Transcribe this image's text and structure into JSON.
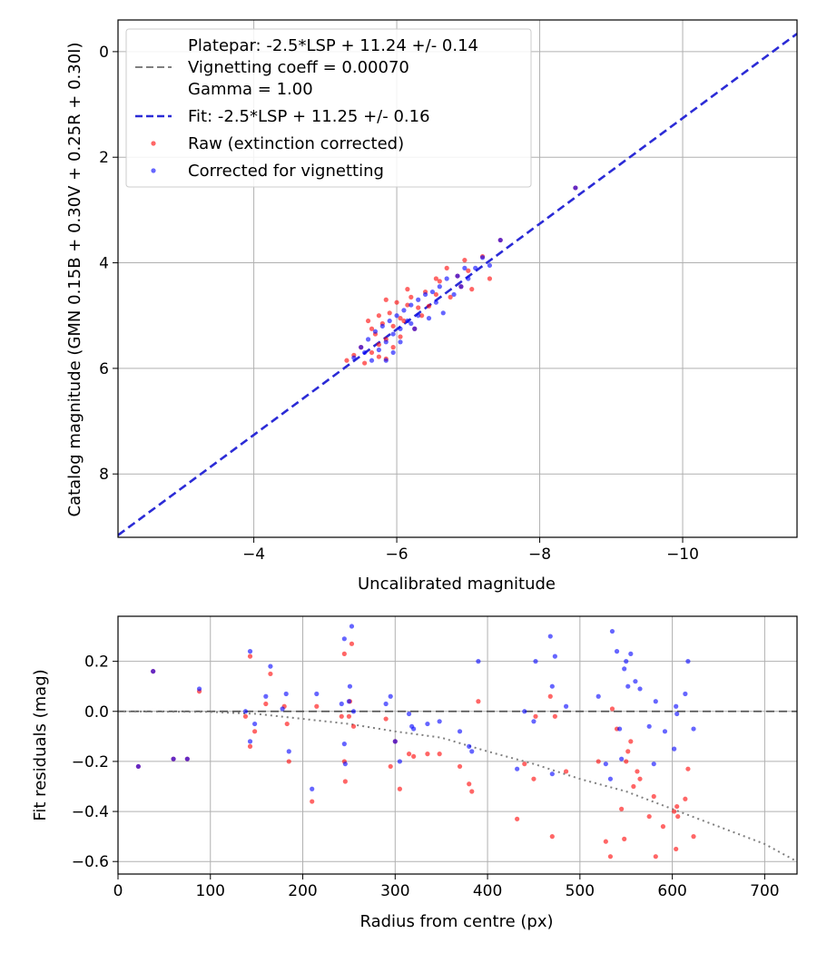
{
  "colors": {
    "raw": "#ff0000",
    "corrected": "#0000ff",
    "fit": "#2b2bd6",
    "vignetting": "#808080",
    "grid": "#b0b0b0"
  },
  "chart_data": [
    {
      "type": "scatter",
      "title": "",
      "xlabel": "Uncalibrated magnitude",
      "ylabel": "Catalog magnitude (GMN 0.15B + 0.30V + 0.25R + 0.30I)",
      "xlim": [
        -2.1,
        -11.6
      ],
      "ylim": [
        9.2,
        -0.6
      ],
      "y_inverted": true,
      "x_inverted": true,
      "grid": true,
      "x_ticks": [
        -4,
        -6,
        -8,
        -10
      ],
      "x_tick_labels": [
        "−4",
        "−6",
        "−8",
        "−10"
      ],
      "y_ticks": [
        0,
        2,
        4,
        6,
        8
      ],
      "y_tick_labels": [
        "0",
        "2",
        "4",
        "6",
        "8"
      ],
      "legend_position": "top-left",
      "legend": {
        "platepar": "Platepar: -2.5*LSP + 11.24 +/- 0.14",
        "vignetting": "Vignetting coeff = 0.00070",
        "gamma": "Gamma = 1.00",
        "fit": "Fit: -2.5*LSP + 11.25 +/- 0.16",
        "raw": "Raw (extinction corrected)",
        "corrected": "Corrected for vignetting"
      },
      "lines": [
        {
          "name": "Platepar",
          "style": "solid",
          "points": [
            [
              -2.1,
              9.16
            ],
            [
              -11.6,
              -0.34
            ]
          ]
        },
        {
          "name": "Fit",
          "style": "dashed",
          "points": [
            [
              -2.1,
              9.16
            ],
            [
              -11.6,
              -0.34
            ]
          ]
        }
      ],
      "series": [
        {
          "name": "Raw (extinction corrected)",
          "points": [
            [
              -8.5,
              2.58
            ],
            [
              -7.45,
              3.57
            ],
            [
              -7.2,
              3.88
            ],
            [
              -6.95,
              3.95
            ],
            [
              -6.7,
              4.1
            ],
            [
              -7.0,
              4.15
            ],
            [
              -6.85,
              4.25
            ],
            [
              -6.6,
              4.35
            ],
            [
              -6.9,
              4.45
            ],
            [
              -7.05,
              4.5
            ],
            [
              -6.4,
              4.55
            ],
            [
              -6.55,
              4.6
            ],
            [
              -6.2,
              4.65
            ],
            [
              -6.75,
              4.65
            ],
            [
              -5.85,
              4.7
            ],
            [
              -6.0,
              4.75
            ],
            [
              -6.15,
              4.8
            ],
            [
              -6.3,
              4.85
            ],
            [
              -6.45,
              4.82
            ],
            [
              -5.9,
              4.95
            ],
            [
              -5.75,
              5.0
            ],
            [
              -6.05,
              5.05
            ],
            [
              -6.35,
              5.0
            ],
            [
              -5.6,
              5.1
            ],
            [
              -5.8,
              5.15
            ],
            [
              -6.1,
              5.1
            ],
            [
              -5.65,
              5.25
            ],
            [
              -5.95,
              5.2
            ],
            [
              -6.25,
              5.25
            ],
            [
              -5.7,
              5.35
            ],
            [
              -5.85,
              5.45
            ],
            [
              -6.05,
              5.4
            ],
            [
              -5.5,
              5.6
            ],
            [
              -5.75,
              5.55
            ],
            [
              -5.95,
              5.6
            ],
            [
              -5.4,
              5.75
            ],
            [
              -5.65,
              5.7
            ],
            [
              -5.85,
              5.82
            ],
            [
              -5.3,
              5.85
            ],
            [
              -5.55,
              5.9
            ],
            [
              -5.75,
              5.78
            ],
            [
              -6.15,
              4.5
            ],
            [
              -6.55,
              4.3
            ],
            [
              -7.3,
              4.3
            ]
          ]
        },
        {
          "name": "Corrected for vignetting",
          "points": [
            [
              -8.5,
              2.58
            ],
            [
              -7.45,
              3.57
            ],
            [
              -7.2,
              3.9
            ],
            [
              -7.3,
              4.05
            ],
            [
              -7.1,
              4.1
            ],
            [
              -6.95,
              4.1
            ],
            [
              -6.85,
              4.25
            ],
            [
              -6.7,
              4.3
            ],
            [
              -6.6,
              4.45
            ],
            [
              -6.5,
              4.55
            ],
            [
              -6.4,
              4.6
            ],
            [
              -6.8,
              4.6
            ],
            [
              -6.3,
              4.7
            ],
            [
              -6.2,
              4.8
            ],
            [
              -6.55,
              4.75
            ],
            [
              -6.1,
              4.9
            ],
            [
              -6.0,
              5.0
            ],
            [
              -6.3,
              5.0
            ],
            [
              -5.9,
              5.1
            ],
            [
              -6.15,
              5.1
            ],
            [
              -5.8,
              5.2
            ],
            [
              -6.05,
              5.25
            ],
            [
              -5.7,
              5.3
            ],
            [
              -5.95,
              5.35
            ],
            [
              -6.25,
              5.25
            ],
            [
              -5.6,
              5.45
            ],
            [
              -5.85,
              5.5
            ],
            [
              -6.05,
              5.5
            ],
            [
              -5.5,
              5.6
            ],
            [
              -5.75,
              5.65
            ],
            [
              -5.95,
              5.7
            ],
            [
              -5.4,
              5.8
            ],
            [
              -5.65,
              5.85
            ],
            [
              -5.85,
              5.85
            ],
            [
              -5.55,
              5.7
            ],
            [
              -6.45,
              5.05
            ],
            [
              -6.9,
              4.45
            ],
            [
              -7.0,
              4.3
            ],
            [
              -6.65,
              4.95
            ],
            [
              -6.2,
              5.15
            ]
          ]
        }
      ]
    },
    {
      "type": "scatter",
      "title": "",
      "xlabel": "Radius from centre (px)",
      "ylabel": "Fit residuals (mag)",
      "xlim": [
        0,
        735
      ],
      "ylim": [
        -0.65,
        0.38
      ],
      "grid": true,
      "x_ticks": [
        0,
        100,
        200,
        300,
        400,
        500,
        600,
        700
      ],
      "x_tick_labels": [
        "0",
        "100",
        "200",
        "300",
        "400",
        "500",
        "600",
        "700"
      ],
      "y_ticks": [
        0.2,
        0.0,
        -0.2,
        -0.4,
        -0.6
      ],
      "y_tick_labels": [
        "0.2",
        "0.0",
        "−0.2",
        "−0.4",
        "−0.6"
      ],
      "lines": [
        {
          "name": "Zero",
          "style": "dashed",
          "points": [
            [
              0,
              0
            ],
            [
              735,
              0
            ]
          ]
        },
        {
          "name": "Vignetting model",
          "style": "dotted",
          "coeff": 0.0007,
          "points": [
            [
              0,
              0
            ],
            [
              100,
              -0.002
            ],
            [
              150,
              -0.01
            ],
            [
              200,
              -0.03
            ],
            [
              250,
              -0.05
            ],
            [
              300,
              -0.08
            ],
            [
              350,
              -0.105
            ],
            [
              400,
              -0.16
            ],
            [
              450,
              -0.21
            ],
            [
              500,
              -0.27
            ],
            [
              550,
              -0.32
            ],
            [
              600,
              -0.39
            ],
            [
              650,
              -0.46
            ],
            [
              700,
              -0.53
            ],
            [
              735,
              -0.6
            ]
          ]
        }
      ],
      "series": [
        {
          "name": "Raw (extinction corrected)",
          "points": [
            [
              22,
              -0.22
            ],
            [
              38,
              0.16
            ],
            [
              60,
              -0.19
            ],
            [
              75,
              -0.19
            ],
            [
              88,
              0.08
            ],
            [
              138,
              -0.02
            ],
            [
              143,
              0.22
            ],
            [
              143,
              -0.14
            ],
            [
              148,
              -0.08
            ],
            [
              160,
              0.03
            ],
            [
              165,
              0.15
            ],
            [
              180,
              0.02
            ],
            [
              183,
              -0.05
            ],
            [
              185,
              -0.2
            ],
            [
              210,
              -0.36
            ],
            [
              215,
              0.02
            ],
            [
              242,
              -0.02
            ],
            [
              245,
              0.23
            ],
            [
              245,
              -0.2
            ],
            [
              246,
              -0.28
            ],
            [
              250,
              -0.02
            ],
            [
              251,
              0.04
            ],
            [
              253,
              0.27
            ],
            [
              255,
              -0.06
            ],
            [
              290,
              -0.03
            ],
            [
              295,
              -0.22
            ],
            [
              300,
              -0.12
            ],
            [
              305,
              -0.31
            ],
            [
              315,
              -0.17
            ],
            [
              320,
              -0.18
            ],
            [
              335,
              -0.17
            ],
            [
              348,
              -0.17
            ],
            [
              370,
              -0.22
            ],
            [
              380,
              -0.29
            ],
            [
              383,
              -0.32
            ],
            [
              390,
              0.04
            ],
            [
              432,
              -0.43
            ],
            [
              440,
              -0.21
            ],
            [
              450,
              -0.27
            ],
            [
              452,
              -0.02
            ],
            [
              468,
              0.06
            ],
            [
              470,
              -0.5
            ],
            [
              473,
              -0.02
            ],
            [
              485,
              -0.24
            ],
            [
              520,
              -0.2
            ],
            [
              528,
              -0.52
            ],
            [
              533,
              -0.58
            ],
            [
              535,
              0.01
            ],
            [
              540,
              -0.07
            ],
            [
              545,
              -0.39
            ],
            [
              548,
              -0.51
            ],
            [
              550,
              -0.2
            ],
            [
              552,
              -0.16
            ],
            [
              555,
              -0.12
            ],
            [
              558,
              -0.3
            ],
            [
              562,
              -0.24
            ],
            [
              565,
              -0.27
            ],
            [
              575,
              -0.42
            ],
            [
              580,
              -0.34
            ],
            [
              582,
              -0.58
            ],
            [
              590,
              -0.46
            ],
            [
              602,
              -0.4
            ],
            [
              604,
              -0.55
            ],
            [
              605,
              -0.38
            ],
            [
              606,
              -0.42
            ],
            [
              614,
              -0.35
            ],
            [
              617,
              -0.23
            ],
            [
              623,
              -0.5
            ]
          ]
        },
        {
          "name": "Corrected for vignetting",
          "points": [
            [
              22,
              -0.22
            ],
            [
              38,
              0.16
            ],
            [
              60,
              -0.19
            ],
            [
              75,
              -0.19
            ],
            [
              88,
              0.09
            ],
            [
              138,
              0.0
            ],
            [
              143,
              0.24
            ],
            [
              143,
              -0.12
            ],
            [
              148,
              -0.05
            ],
            [
              160,
              0.06
            ],
            [
              165,
              0.18
            ],
            [
              178,
              0.01
            ],
            [
              182,
              0.07
            ],
            [
              185,
              -0.16
            ],
            [
              210,
              -0.31
            ],
            [
              215,
              0.07
            ],
            [
              242,
              0.03
            ],
            [
              245,
              0.29
            ],
            [
              245,
              -0.13
            ],
            [
              246,
              -0.21
            ],
            [
              250,
              0.04
            ],
            [
              251,
              0.1
            ],
            [
              253,
              0.34
            ],
            [
              255,
              0.0
            ],
            [
              290,
              0.03
            ],
            [
              295,
              0.06
            ],
            [
              300,
              -0.12
            ],
            [
              305,
              -0.2
            ],
            [
              315,
              -0.01
            ],
            [
              318,
              -0.06
            ],
            [
              320,
              -0.07
            ],
            [
              335,
              -0.05
            ],
            [
              348,
              -0.04
            ],
            [
              370,
              -0.08
            ],
            [
              380,
              -0.14
            ],
            [
              383,
              -0.16
            ],
            [
              390,
              0.2
            ],
            [
              432,
              -0.23
            ],
            [
              440,
              0.0
            ],
            [
              450,
              -0.04
            ],
            [
              452,
              0.2
            ],
            [
              468,
              0.3
            ],
            [
              470,
              -0.25
            ],
            [
              470,
              0.1
            ],
            [
              473,
              0.22
            ],
            [
              485,
              0.02
            ],
            [
              520,
              0.06
            ],
            [
              528,
              -0.21
            ],
            [
              533,
              -0.27
            ],
            [
              535,
              0.32
            ],
            [
              540,
              0.24
            ],
            [
              543,
              -0.07
            ],
            [
              545,
              -0.19
            ],
            [
              548,
              0.17
            ],
            [
              550,
              0.2
            ],
            [
              552,
              0.1
            ],
            [
              555,
              0.23
            ],
            [
              560,
              0.12
            ],
            [
              565,
              0.09
            ],
            [
              575,
              -0.06
            ],
            [
              580,
              -0.21
            ],
            [
              582,
              0.04
            ],
            [
              592,
              -0.08
            ],
            [
              602,
              -0.15
            ],
            [
              604,
              0.02
            ],
            [
              605,
              -0.01
            ],
            [
              614,
              0.07
            ],
            [
              617,
              0.2
            ],
            [
              623,
              -0.07
            ]
          ]
        }
      ]
    }
  ]
}
